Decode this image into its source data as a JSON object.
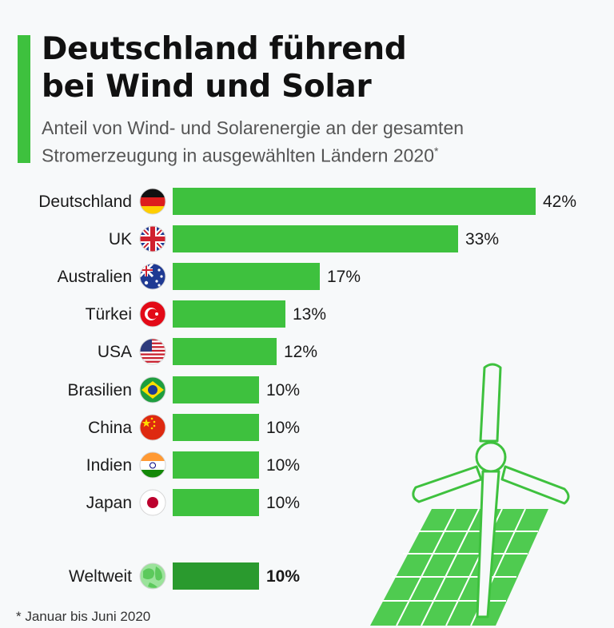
{
  "header": {
    "title_line1": "Deutschland führend",
    "title_line2": "bei Wind und Solar",
    "subtitle_line1": "Anteil von Wind- und Solarenergie an der gesamten",
    "subtitle_line2": "Stromerzeugung in ausgewählten Ländern 2020",
    "subtitle_mark": "*"
  },
  "footnote": "* Januar bis Juni 2020",
  "colors": {
    "accent": "#3ec13e",
    "bar": "#3ec13e",
    "bar_highlight": "#2a9a2e",
    "illustration_panel": "#4fcb50"
  },
  "chart_data": {
    "type": "bar",
    "orientation": "horizontal",
    "categories": [
      "Deutschland",
      "UK",
      "Australien",
      "Türkei",
      "USA",
      "Brasilien",
      "China",
      "Indien",
      "Japan",
      "Weltweit"
    ],
    "values": [
      42,
      33,
      17,
      13,
      12,
      10,
      10,
      10,
      10,
      10
    ],
    "value_labels": [
      "42%",
      "33%",
      "17%",
      "13%",
      "12%",
      "10%",
      "10%",
      "10%",
      "10%",
      "10%"
    ],
    "flag_icons": [
      "flag-germany-icon",
      "flag-uk-icon",
      "flag-australia-icon",
      "flag-turkey-icon",
      "flag-usa-icon",
      "flag-brazil-icon",
      "flag-china-icon",
      "flag-india-icon",
      "flag-japan-icon",
      "globe-icon"
    ],
    "highlighted": "Weltweit",
    "unit": "%",
    "xlim": [
      0,
      42
    ],
    "grid": false,
    "legend": "none"
  }
}
